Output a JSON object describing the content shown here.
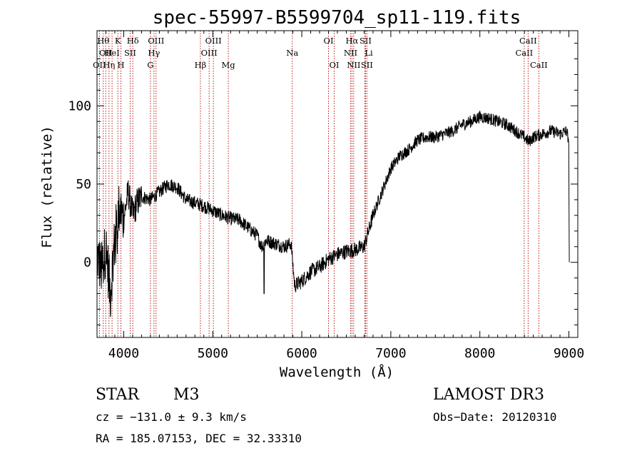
{
  "chart_data": {
    "type": "line",
    "title": "spec-55997-B5599704_sp11-119.fits",
    "xlabel": "Wavelength (Å)",
    "ylabel": "Flux (relative)",
    "xlim": [
      3700,
      9100
    ],
    "ylim": [
      -48,
      148
    ],
    "x_ticks": [
      4000,
      5000,
      6000,
      7000,
      8000,
      9000
    ],
    "y_ticks": [
      0,
      50,
      100
    ],
    "spectrum_anchors": [
      [
        3700,
        5
      ],
      [
        3750,
        -5
      ],
      [
        3800,
        10
      ],
      [
        3850,
        -20
      ],
      [
        3900,
        15
      ],
      [
        3950,
        35
      ],
      [
        4000,
        28
      ],
      [
        4050,
        45
      ],
      [
        4100,
        30
      ],
      [
        4150,
        38
      ],
      [
        4200,
        42
      ],
      [
        4300,
        40
      ],
      [
        4400,
        45
      ],
      [
        4500,
        50
      ],
      [
        4600,
        48
      ],
      [
        4700,
        40
      ],
      [
        4800,
        38
      ],
      [
        4900,
        36
      ],
      [
        5000,
        33
      ],
      [
        5100,
        30
      ],
      [
        5200,
        28
      ],
      [
        5300,
        27
      ],
      [
        5400,
        22
      ],
      [
        5500,
        17
      ],
      [
        5550,
        10
      ],
      [
        5600,
        14
      ],
      [
        5700,
        12
      ],
      [
        5800,
        10
      ],
      [
        5880,
        12
      ],
      [
        5920,
        -15
      ],
      [
        6000,
        -12
      ],
      [
        6100,
        -6
      ],
      [
        6200,
        -3
      ],
      [
        6300,
        2
      ],
      [
        6400,
        5
      ],
      [
        6500,
        7
      ],
      [
        6600,
        8
      ],
      [
        6700,
        10
      ],
      [
        6750,
        20
      ],
      [
        6800,
        30
      ],
      [
        6900,
        45
      ],
      [
        7000,
        60
      ],
      [
        7100,
        68
      ],
      [
        7200,
        72
      ],
      [
        7300,
        78
      ],
      [
        7400,
        80
      ],
      [
        7500,
        80
      ],
      [
        7600,
        82
      ],
      [
        7700,
        84
      ],
      [
        7800,
        88
      ],
      [
        7900,
        90
      ],
      [
        8000,
        93
      ],
      [
        8100,
        92
      ],
      [
        8200,
        90
      ],
      [
        8300,
        88
      ],
      [
        8400,
        84
      ],
      [
        8500,
        80
      ],
      [
        8550,
        77
      ],
      [
        8600,
        80
      ],
      [
        8700,
        82
      ],
      [
        8800,
        84
      ],
      [
        8900,
        82
      ],
      [
        8980,
        84
      ],
      [
        9000,
        72
      ],
      [
        9005,
        0
      ]
    ],
    "spectral_lines": [
      {
        "wl": 3727,
        "label": "OII",
        "row": 2,
        "anchor": "middle"
      },
      {
        "wl": 3770,
        "label": "Hθ",
        "row": 0,
        "anchor": "middle"
      },
      {
        "wl": 3798,
        "label": "OII",
        "row": 1,
        "anchor": "middle"
      },
      {
        "wl": 3835,
        "label": "Hη",
        "row": 2,
        "anchor": "middle"
      },
      {
        "wl": 3869,
        "label": "HeI",
        "row": 1,
        "anchor": "middle"
      },
      {
        "wl": 3934,
        "label": "K",
        "row": 0,
        "anchor": "middle"
      },
      {
        "wl": 3969,
        "label": "H",
        "row": 2,
        "anchor": "middle"
      },
      {
        "wl": 4072,
        "label": "SII",
        "row": 1,
        "anchor": "middle"
      },
      {
        "wl": 4102,
        "label": "Hδ",
        "row": 0,
        "anchor": "middle"
      },
      {
        "wl": 4300,
        "label": "G",
        "row": 2,
        "anchor": "middle"
      },
      {
        "wl": 4340,
        "label": "Hγ",
        "row": 1,
        "anchor": "middle"
      },
      {
        "wl": 4363,
        "label": "OIII",
        "row": 0,
        "anchor": "middle"
      },
      {
        "wl": 4861,
        "label": "Hβ",
        "row": 2,
        "anchor": "middle"
      },
      {
        "wl": 4959,
        "label": "OIII",
        "row": 1,
        "anchor": "middle"
      },
      {
        "wl": 5007,
        "label": "OIII",
        "row": 0,
        "anchor": "middle"
      },
      {
        "wl": 5175,
        "label": "Mg",
        "row": 2,
        "anchor": "middle"
      },
      {
        "wl": 5893,
        "label": "Na",
        "row": 1,
        "anchor": "middle"
      },
      {
        "wl": 6300,
        "label": "OI",
        "row": 0,
        "anchor": "middle"
      },
      {
        "wl": 6364,
        "label": "OI",
        "row": 2,
        "anchor": "middle"
      },
      {
        "wl": 6548,
        "label": "NII",
        "row": 1,
        "anchor": "middle"
      },
      {
        "wl": 6563,
        "label": "Hα",
        "row": 0,
        "anchor": "middle"
      },
      {
        "wl": 6583,
        "label": "NII",
        "row": 2,
        "anchor": "middle"
      },
      {
        "wl": 6707,
        "label": "Li",
        "row": 1,
        "anchor": "start"
      },
      {
        "wl": 6716,
        "label": "SII",
        "row": 0,
        "anchor": "middle"
      },
      {
        "wl": 6731,
        "label": "SII",
        "row": 2,
        "anchor": "middle"
      },
      {
        "wl": 8498,
        "label": "CaII",
        "row": 1,
        "anchor": "middle"
      },
      {
        "wl": 8542,
        "label": "CaII",
        "row": 0,
        "anchor": "middle"
      },
      {
        "wl": 8662,
        "label": "CaII",
        "row": 2,
        "anchor": "middle"
      }
    ]
  },
  "info": {
    "class": "STAR",
    "subclass": "M3",
    "survey": "LAMOST DR3",
    "cz": "cz = −131.0 ± 9.3 km/s",
    "obs_date": "Obs−Date: 20120310",
    "coords": "RA = 185.07153, DEC =  32.33310"
  }
}
